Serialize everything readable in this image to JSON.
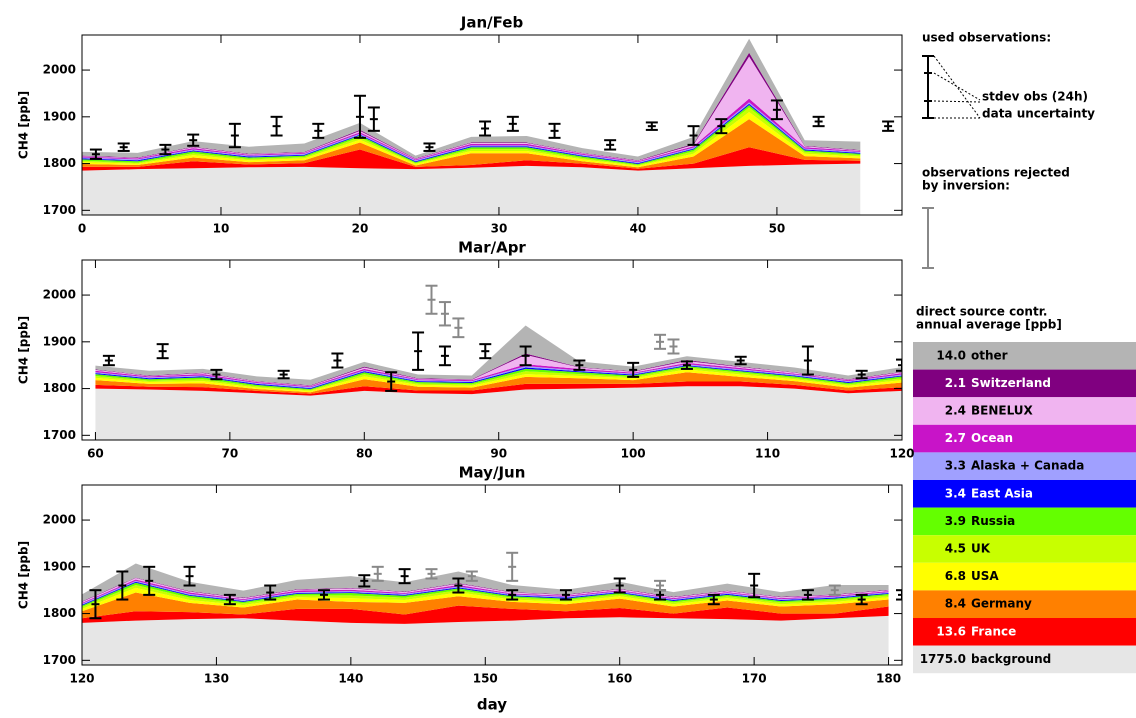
{
  "chart_data": [
    {
      "type": "stacked-area",
      "title": "Jan/Feb",
      "y_label": "CH4 [ppb]",
      "xlim": [
        0,
        59
      ],
      "xticks": [
        0,
        10,
        20,
        30,
        40,
        50
      ],
      "ylim": [
        1690,
        2075
      ],
      "yticks": [
        1700,
        1800,
        1900,
        2000
      ],
      "x": [
        0,
        4,
        8,
        12,
        16,
        20,
        24,
        28,
        32,
        36,
        40,
        44,
        48,
        52,
        56
      ],
      "stack": [
        [
          1785,
          1788,
          1790,
          1792,
          1793,
          1790,
          1788,
          1791,
          1795,
          1792,
          1785,
          1790,
          1795,
          1798,
          1800
        ],
        [
          8,
          5,
          15,
          6,
          8,
          40,
          5,
          6,
          12,
          8,
          4,
          10,
          40,
          10,
          6
        ],
        [
          6,
          4,
          8,
          5,
          6,
          15,
          3,
          25,
          15,
          5,
          3,
          15,
          60,
          8,
          5
        ],
        [
          4,
          3,
          5,
          4,
          4,
          6,
          3,
          5,
          5,
          4,
          3,
          6,
          15,
          5,
          4
        ],
        [
          3,
          2,
          4,
          3,
          3,
          5,
          2,
          4,
          4,
          3,
          2,
          5,
          10,
          4,
          3
        ],
        [
          3,
          3,
          4,
          3,
          3,
          4,
          2,
          4,
          4,
          3,
          2,
          4,
          5,
          3,
          3
        ],
        [
          2,
          2,
          2,
          2,
          2,
          2,
          2,
          2,
          2,
          2,
          2,
          2,
          3,
          2,
          2
        ],
        [
          2,
          2,
          2,
          2,
          2,
          2,
          2,
          2,
          2,
          2,
          2,
          2,
          3,
          2,
          2
        ],
        [
          2,
          2,
          3,
          2,
          2,
          3,
          2,
          3,
          3,
          2,
          2,
          3,
          8,
          3,
          2
        ],
        [
          1,
          1,
          2,
          1,
          1,
          3,
          1,
          2,
          2,
          1,
          1,
          3,
          90,
          2,
          1
        ],
        [
          1,
          1,
          1,
          1,
          1,
          2,
          1,
          1,
          1,
          1,
          1,
          2,
          8,
          1,
          1
        ],
        [
          8,
          10,
          12,
          15,
          18,
          15,
          6,
          12,
          14,
          10,
          8,
          15,
          30,
          12,
          18
        ]
      ],
      "observations": {
        "x": [
          1,
          3,
          6,
          8,
          11,
          14,
          17,
          20,
          21,
          25,
          29,
          31,
          34,
          38,
          41,
          44,
          46,
          50,
          53,
          58
        ],
        "y": [
          1820,
          1835,
          1830,
          1850,
          1860,
          1880,
          1870,
          1900,
          1895,
          1835,
          1875,
          1885,
          1870,
          1840,
          1880,
          1860,
          1880,
          1915,
          1890,
          1880
        ],
        "err": [
          10,
          8,
          10,
          12,
          25,
          20,
          15,
          45,
          25,
          8,
          15,
          15,
          15,
          10,
          8,
          20,
          15,
          20,
          10,
          10
        ]
      }
    },
    {
      "type": "stacked-area",
      "title": "Mar/Apr",
      "y_label": "CH4 [ppb]",
      "xlim": [
        59,
        120
      ],
      "xticks": [
        60,
        70,
        80,
        90,
        100,
        110,
        120
      ],
      "ylim": [
        1690,
        2075
      ],
      "yticks": [
        1700,
        1800,
        1900,
        2000
      ],
      "x": [
        60,
        64,
        68,
        72,
        76,
        80,
        84,
        88,
        92,
        96,
        100,
        104,
        108,
        112,
        116,
        120
      ],
      "stack": [
        [
          1800,
          1798,
          1795,
          1790,
          1785,
          1795,
          1790,
          1788,
          1798,
          1800,
          1802,
          1805,
          1805,
          1800,
          1790,
          1795
        ],
        [
          8,
          6,
          8,
          5,
          4,
          10,
          6,
          8,
          12,
          10,
          8,
          10,
          10,
          8,
          6,
          8
        ],
        [
          10,
          6,
          8,
          4,
          3,
          15,
          8,
          6,
          15,
          12,
          8,
          20,
          10,
          8,
          6,
          10
        ],
        [
          5,
          4,
          5,
          3,
          3,
          6,
          4,
          4,
          6,
          5,
          4,
          6,
          5,
          4,
          4,
          5
        ],
        [
          4,
          3,
          4,
          3,
          2,
          5,
          3,
          3,
          6,
          4,
          3,
          4,
          4,
          3,
          3,
          4
        ],
        [
          4,
          3,
          4,
          3,
          2,
          4,
          3,
          3,
          5,
          4,
          3,
          3,
          3,
          3,
          3,
          4
        ],
        [
          2,
          2,
          2,
          2,
          2,
          2,
          2,
          2,
          3,
          2,
          2,
          2,
          2,
          2,
          2,
          2
        ],
        [
          2,
          2,
          2,
          2,
          2,
          2,
          2,
          2,
          3,
          2,
          2,
          2,
          2,
          2,
          2,
          2
        ],
        [
          3,
          2,
          3,
          2,
          2,
          3,
          2,
          2,
          4,
          3,
          2,
          3,
          3,
          2,
          2,
          3
        ],
        [
          2,
          1,
          2,
          1,
          1,
          3,
          1,
          1,
          20,
          3,
          2,
          4,
          2,
          2,
          1,
          2
        ],
        [
          1,
          1,
          1,
          1,
          1,
          2,
          1,
          1,
          3,
          1,
          1,
          2,
          1,
          1,
          1,
          1
        ],
        [
          8,
          10,
          8,
          10,
          12,
          10,
          8,
          8,
          60,
          12,
          10,
          8,
          10,
          10,
          8,
          10
        ]
      ],
      "observations": {
        "x": [
          61,
          65,
          69,
          74,
          78,
          82,
          84,
          86,
          89,
          92,
          96,
          100,
          104,
          108,
          113,
          117,
          120
        ],
        "y": [
          1860,
          1880,
          1830,
          1830,
          1860,
          1815,
          1880,
          1870,
          1880,
          1870,
          1850,
          1840,
          1850,
          1860,
          1860,
          1830,
          1850
        ],
        "err": [
          10,
          15,
          10,
          8,
          15,
          20,
          40,
          20,
          15,
          20,
          10,
          15,
          8,
          8,
          30,
          8,
          12
        ]
      },
      "rejected": {
        "x": [
          85,
          86,
          87,
          102,
          103
        ],
        "y": [
          1990,
          1960,
          1930,
          1900,
          1890
        ],
        "err": [
          30,
          25,
          20,
          15,
          15
        ]
      }
    },
    {
      "type": "stacked-area",
      "title": "May/Jun",
      "y_label": "CH4 [ppb]",
      "x_label": "day",
      "xlim": [
        120,
        181
      ],
      "xticks": [
        120,
        130,
        140,
        150,
        160,
        170,
        180
      ],
      "ylim": [
        1690,
        2075
      ],
      "yticks": [
        1700,
        1800,
        1900,
        2000
      ],
      "x": [
        120,
        124,
        128,
        132,
        136,
        140,
        144,
        148,
        152,
        156,
        160,
        164,
        168,
        172,
        176,
        180
      ],
      "stack": [
        [
          1780,
          1785,
          1788,
          1790,
          1785,
          1780,
          1778,
          1782,
          1785,
          1790,
          1792,
          1790,
          1788,
          1785,
          1790,
          1795
        ],
        [
          10,
          20,
          15,
          8,
          25,
          30,
          20,
          35,
          25,
          15,
          20,
          10,
          25,
          15,
          10,
          20
        ],
        [
          15,
          40,
          20,
          15,
          20,
          15,
          25,
          20,
          15,
          15,
          20,
          15,
          15,
          15,
          20,
          15
        ],
        [
          5,
          10,
          6,
          5,
          5,
          8,
          6,
          8,
          5,
          5,
          5,
          5,
          5,
          5,
          5,
          5
        ],
        [
          4,
          6,
          5,
          4,
          4,
          6,
          5,
          5,
          4,
          4,
          4,
          4,
          4,
          4,
          4,
          4
        ],
        [
          3,
          5,
          4,
          3,
          3,
          5,
          4,
          4,
          3,
          3,
          3,
          3,
          3,
          3,
          3,
          3
        ],
        [
          2,
          2,
          2,
          2,
          2,
          2,
          2,
          2,
          2,
          2,
          2,
          2,
          2,
          2,
          2,
          2
        ],
        [
          2,
          2,
          2,
          2,
          2,
          2,
          2,
          2,
          2,
          2,
          2,
          2,
          2,
          2,
          2,
          2
        ],
        [
          2,
          3,
          3,
          2,
          3,
          3,
          2,
          3,
          2,
          2,
          2,
          2,
          2,
          2,
          2,
          2
        ],
        [
          2,
          3,
          2,
          2,
          2,
          3,
          2,
          3,
          2,
          2,
          2,
          2,
          2,
          2,
          2,
          2
        ],
        [
          1,
          1,
          1,
          1,
          1,
          1,
          1,
          1,
          1,
          1,
          1,
          1,
          1,
          1,
          1,
          1
        ],
        [
          15,
          30,
          20,
          15,
          20,
          25,
          20,
          25,
          15,
          10,
          15,
          10,
          15,
          10,
          20,
          10
        ]
      ],
      "observations": {
        "x": [
          121,
          123,
          125,
          128,
          131,
          134,
          138,
          141,
          144,
          148,
          152,
          156,
          160,
          163,
          167,
          170,
          174,
          178,
          181
        ],
        "y": [
          1820,
          1860,
          1870,
          1880,
          1830,
          1845,
          1840,
          1870,
          1880,
          1860,
          1840,
          1840,
          1860,
          1840,
          1830,
          1860,
          1840,
          1830,
          1840
        ],
        "err": [
          30,
          30,
          30,
          20,
          10,
          15,
          10,
          12,
          15,
          15,
          10,
          10,
          15,
          10,
          10,
          25,
          10,
          10,
          10
        ]
      },
      "rejected": {
        "x": [
          142,
          146,
          149,
          152,
          163,
          176
        ],
        "y": [
          1885,
          1885,
          1880,
          1900,
          1860,
          1850
        ],
        "err": [
          15,
          10,
          10,
          30,
          10,
          10
        ]
      }
    }
  ],
  "key": {
    "used": "used observations:",
    "stdev": "stdev obs (24h)",
    "uncertainty": "data uncertainty",
    "rejected_1": "observations rejected",
    "rejected_2": "by inversion:"
  },
  "legend": {
    "title_1": "direct source contr.",
    "title_2": "annual average [ppb]",
    "sources": [
      {
        "name": "background",
        "color": "#e6e6e6",
        "average": 1775.0,
        "average_label": "1775.0"
      },
      {
        "name": "France",
        "color": "#ff0000",
        "average": 13.6,
        "average_label": "13.6"
      },
      {
        "name": "Germany",
        "color": "#ff8000",
        "average": 8.4,
        "average_label": "8.4"
      },
      {
        "name": "USA",
        "color": "#ffff00",
        "average": 6.8,
        "average_label": "6.8"
      },
      {
        "name": "UK",
        "color": "#c8ff00",
        "average": 4.5,
        "average_label": "4.5"
      },
      {
        "name": "Russia",
        "color": "#64ff00",
        "average": 3.9,
        "average_label": "3.9"
      },
      {
        "name": "East Asia",
        "color": "#0000ff",
        "average": 3.4,
        "average_label": "3.4"
      },
      {
        "name": "Alaska + Canada",
        "color": "#a0a0ff",
        "average": 3.3,
        "average_label": "3.3"
      },
      {
        "name": "Ocean",
        "color": "#c814c8",
        "average": 2.7,
        "average_label": "2.7"
      },
      {
        "name": "BENELUX",
        "color": "#f0b4f0",
        "average": 2.4,
        "average_label": "2.4"
      },
      {
        "name": "Switzerland",
        "color": "#800080",
        "average": 2.1,
        "average_label": "2.1"
      },
      {
        "name": "other",
        "color": "#b4b4b4",
        "average": 14.0,
        "average_label": "14.0"
      }
    ]
  }
}
